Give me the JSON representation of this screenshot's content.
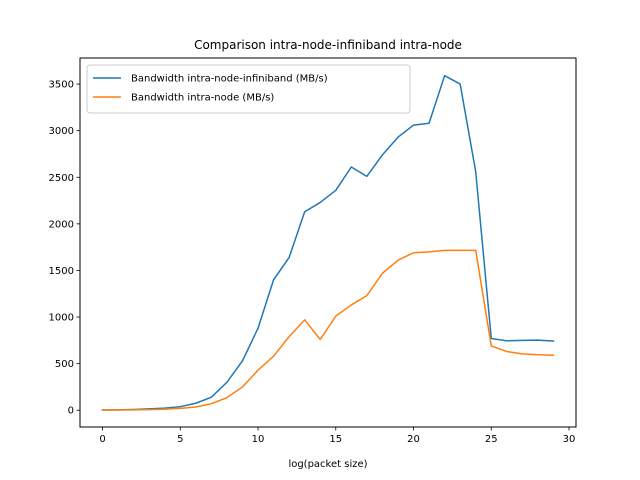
{
  "chart_data": {
    "type": "line",
    "title": "Comparison intra-node-infiniband intra-node",
    "xlabel": "log(packet size)",
    "ylabel": "",
    "xlim": [
      -1.45,
      30.45
    ],
    "ylim": [
      -180,
      3780
    ],
    "xticks": [
      0,
      5,
      10,
      15,
      20,
      25,
      30
    ],
    "yticks": [
      0,
      500,
      1000,
      1500,
      2000,
      2500,
      3000,
      3500
    ],
    "grid": false,
    "legend_position": "top-left",
    "x": [
      0,
      1,
      2,
      3,
      4,
      5,
      6,
      7,
      8,
      9,
      10,
      11,
      12,
      13,
      14,
      15,
      16,
      17,
      18,
      19,
      20,
      21,
      22,
      23,
      24,
      25,
      26,
      27,
      28,
      29
    ],
    "series": [
      {
        "name": "Bandwidth intra-node-infiniband (MB/s)",
        "color": "#1f77b4",
        "values": [
          2,
          4,
          8,
          14,
          22,
          38,
          75,
          140,
          300,
          530,
          880,
          1400,
          1640,
          2130,
          2230,
          2360,
          2610,
          2510,
          2740,
          2930,
          3060,
          3080,
          3590,
          3500,
          2560,
          770,
          745,
          750,
          752,
          742
        ]
      },
      {
        "name": "Bandwidth intra-node (MB/s)",
        "color": "#ff7f0e",
        "values": [
          1,
          2,
          4,
          7,
          12,
          20,
          35,
          70,
          135,
          250,
          430,
          580,
          790,
          970,
          760,
          1010,
          1130,
          1230,
          1470,
          1610,
          1690,
          1700,
          1715,
          1715,
          1715,
          690,
          630,
          605,
          595,
          590
        ]
      }
    ]
  }
}
